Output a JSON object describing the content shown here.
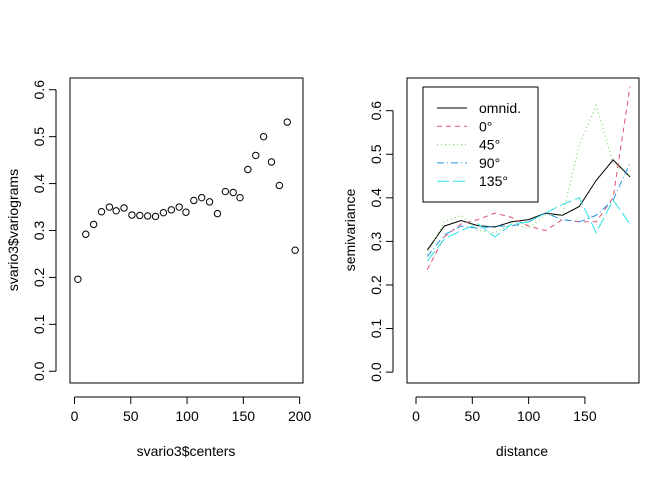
{
  "chart_data": [
    {
      "type": "scatter",
      "title": "",
      "xlabel": "svario3$centers",
      "ylabel": "svario3$variograms",
      "xlim": [
        -4,
        203
      ],
      "ylim": [
        -0.025,
        0.625
      ],
      "xticks": [
        0,
        50,
        100,
        150,
        200
      ],
      "yticks": [
        0.0,
        0.1,
        0.2,
        0.3,
        0.4,
        0.5,
        0.6
      ],
      "xtick_labels": [
        "0",
        "50",
        "100",
        "150",
        "200"
      ],
      "ytick_labels": [
        "0.0",
        "0.1",
        "0.2",
        "0.3",
        "0.4",
        "0.5",
        "0.6"
      ],
      "grid": false,
      "marker": "open-circle",
      "series": [
        {
          "x": [
            3,
            10,
            17,
            24,
            31,
            37,
            44,
            51,
            58,
            65,
            72,
            79,
            86,
            93,
            99,
            106,
            113,
            120,
            127,
            134,
            141,
            147,
            154,
            161,
            168,
            175,
            182,
            189,
            196
          ],
          "y": [
            0.196,
            0.292,
            0.313,
            0.34,
            0.35,
            0.342,
            0.348,
            0.333,
            0.332,
            0.331,
            0.33,
            0.338,
            0.344,
            0.35,
            0.339,
            0.364,
            0.37,
            0.361,
            0.336,
            0.383,
            0.381,
            0.37,
            0.43,
            0.46,
            0.5,
            0.446,
            0.396,
            0.531,
            0.258
          ]
        }
      ]
    },
    {
      "type": "line",
      "title": "",
      "xlabel": "distance",
      "ylabel": "semivariance",
      "xlim": [
        -8,
        198
      ],
      "ylim": [
        -0.025,
        0.675
      ],
      "xticks": [
        0,
        50,
        100,
        150
      ],
      "yticks": [
        0.0,
        0.1,
        0.2,
        0.3,
        0.4,
        0.5,
        0.6
      ],
      "xtick_labels": [
        "0",
        "50",
        "100",
        "150"
      ],
      "ytick_labels": [
        "0.0",
        "0.1",
        "0.2",
        "0.3",
        "0.4",
        "0.5",
        "0.6"
      ],
      "grid": false,
      "legend_position": "top-left",
      "x": [
        10,
        25,
        40,
        55,
        70,
        85,
        100,
        115,
        130,
        145,
        160,
        175,
        190
      ],
      "series": [
        {
          "name": "omnid.",
          "color": "#000000",
          "dash": "",
          "values": [
            0.28,
            0.335,
            0.348,
            0.336,
            0.333,
            0.345,
            0.35,
            0.365,
            0.36,
            0.38,
            0.44,
            0.487,
            0.448
          ]
        },
        {
          "name": "0°",
          "color": "#DF536B",
          "dash": "5,4",
          "values": [
            0.235,
            0.31,
            0.34,
            0.35,
            0.365,
            0.355,
            0.335,
            0.325,
            0.35,
            0.345,
            0.345,
            0.4,
            0.655
          ]
        },
        {
          "name": "45°",
          "color": "#61D04F",
          "dash": "1,3",
          "values": [
            0.27,
            0.345,
            0.36,
            0.325,
            0.32,
            0.34,
            0.33,
            0.36,
            0.36,
            0.52,
            0.612,
            0.48,
            0.45
          ]
        },
        {
          "name": "90°",
          "color": "#2297E6",
          "dash": "7,3,1,3",
          "values": [
            0.265,
            0.315,
            0.335,
            0.33,
            0.335,
            0.335,
            0.345,
            0.365,
            0.35,
            0.345,
            0.36,
            0.395,
            0.48
          ]
        },
        {
          "name": "135°",
          "color": "#28E2E5",
          "dash": "12,4",
          "values": [
            0.255,
            0.305,
            0.325,
            0.34,
            0.31,
            0.34,
            0.345,
            0.365,
            0.385,
            0.4,
            0.32,
            0.395,
            0.34
          ]
        }
      ]
    }
  ]
}
